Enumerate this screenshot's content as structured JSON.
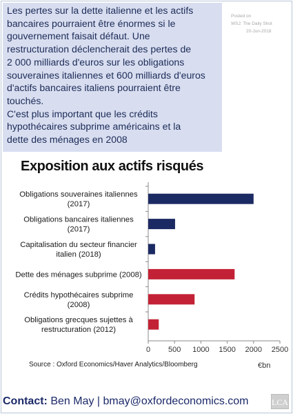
{
  "note": {
    "lines": [
      "Les pertes sur la dette italienne et les actifs",
      "bancaires pourraient être énormes si le",
      "gouvernement faisait défaut. Une",
      "restructuration déclencherait des pertes de",
      "2 000 milliards d'euros sur les obligations",
      "souveraines italiennes et 600 milliards d'euros",
      "d'actifs bancaires italiens pourraient être",
      "touchés.",
      "C'est plus important que les crédits",
      "hypothécaires subprime américains et la",
      "dette des ménages en 2008"
    ]
  },
  "posted": {
    "label": "Posted on",
    "source": "WSJ: The Daily Shot",
    "date": "20-Jun-2018"
  },
  "chart_data": {
    "type": "bar",
    "orientation": "horizontal",
    "title": "Exposition aux actifs risqués",
    "categories": [
      [
        "Obligations souveraines italiennes",
        "(2017)"
      ],
      [
        "Obligations bancaires italiennes",
        "(2017)"
      ],
      [
        "Capitalisation du secteur financier",
        "italien (2018)"
      ],
      [
        "Dette des ménages subprime (2008)"
      ],
      [
        "Crédits hypothécaires subprime",
        "(2008)"
      ],
      [
        "Obligations grecques sujettes à",
        "restructuration (2012)"
      ]
    ],
    "values": [
      2000,
      510,
      130,
      1640,
      880,
      200
    ],
    "colors": [
      "#1c2a63",
      "#1c2a63",
      "#1c2a63",
      "#c32236",
      "#c32236",
      "#c32236"
    ],
    "xticks": [
      "0",
      "500",
      "1000",
      "1500",
      "2000",
      "2500"
    ],
    "xlim": [
      0,
      2500
    ],
    "unit": "€bn",
    "grid": false
  },
  "source": "Source : Oxford Economics/Haver Analytics/Bloomberg",
  "contact": {
    "label": "Contact:",
    "text": " Ben May | bmay@oxfordeconomics.com"
  },
  "logo": "LCA"
}
